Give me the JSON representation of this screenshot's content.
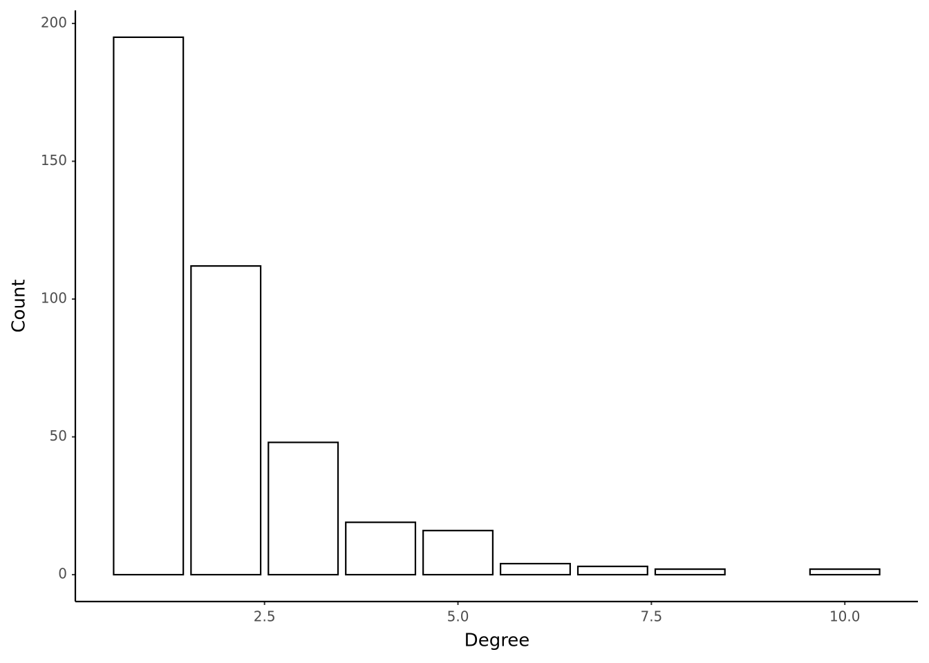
{
  "chart_data": {
    "type": "bar",
    "x_label": "Degree",
    "y_label": "Count",
    "x": [
      1,
      2,
      3,
      4,
      5,
      6,
      7,
      8,
      10
    ],
    "values": [
      195,
      112,
      48,
      19,
      16,
      4,
      3,
      2,
      2
    ],
    "color": "#ffffff",
    "edge_color": "#000000",
    "xlim": [
      0.055,
      10.945
    ],
    "xticks": [
      2.5,
      {
        "value": 5,
        "label": "5.0"
      },
      7.5,
      {
        "value": 10,
        "label": "10.0"
      }
    ],
    "ylim": [
      -9.75,
      204.75
    ],
    "yticks": [
      0,
      50,
      100,
      150,
      200
    ],
    "grid": false
  }
}
